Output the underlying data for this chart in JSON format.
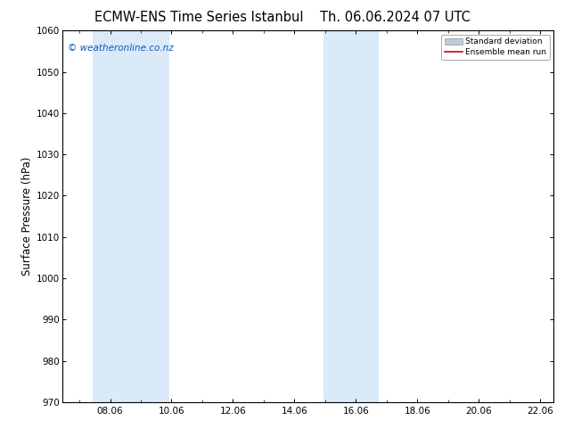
{
  "title_left": "ECMW-ENS Time Series Istanbul",
  "title_right": "Th. 06.06.2024 07 UTC",
  "ylabel": "Surface Pressure (hPa)",
  "ylim": [
    970,
    1060
  ],
  "yticks": [
    970,
    980,
    990,
    1000,
    1010,
    1020,
    1030,
    1040,
    1050,
    1060
  ],
  "xlim_start": 6.5,
  "xlim_end": 22.5,
  "xtick_positions": [
    8.06,
    10.06,
    12.06,
    14.06,
    16.06,
    18.06,
    20.06,
    22.06
  ],
  "xtick_labels": [
    "08.06",
    "10.06",
    "12.06",
    "14.06",
    "16.06",
    "18.06",
    "20.06",
    "22.06"
  ],
  "shade_bands": [
    {
      "x_start": 7.5,
      "x_end": 10.0,
      "color": "#daeaf8"
    },
    {
      "x_start": 15.0,
      "x_end": 16.8,
      "color": "#daeaf8"
    }
  ],
  "watermark": "© weatheronline.co.nz",
  "watermark_color": "#1155bb",
  "watermark_fontsize": 7.5,
  "legend_std_color": "#bbccdd",
  "legend_mean_color": "#cc0000",
  "bg_color": "#ffffff",
  "plot_bg_color": "#ffffff",
  "grid_color": "#dddddd",
  "tick_fontsize": 7.5,
  "ylabel_fontsize": 8.5,
  "title_fontsize": 10.5,
  "title_gap": "    "
}
